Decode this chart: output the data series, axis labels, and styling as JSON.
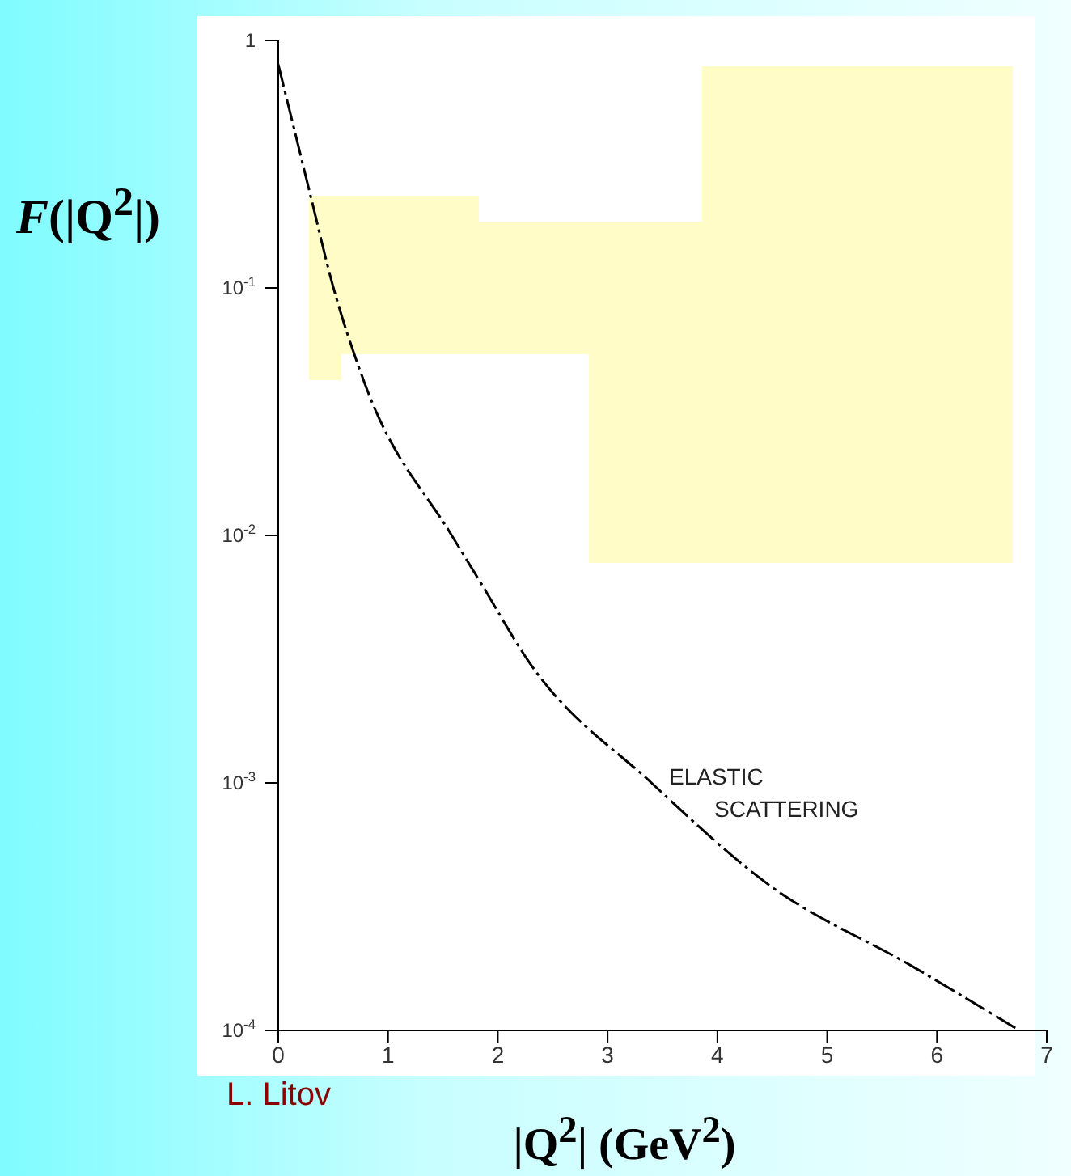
{
  "chart_data": {
    "type": "line",
    "ylabel": "F(|Q$^{2}$|)",
    "xlabel": "|Q$^{2}$| (GeV$^{2}$)",
    "x": [
      0,
      0.29,
      0.49,
      0.78,
      1.58,
      1.83,
      2.28,
      3.4,
      4.46,
      5.79,
      6.75
    ],
    "series": [
      {
        "color": "#000000",
        "line_style": "dashed",
        "values": [
          0.8,
          0.24,
          0.105,
          0.042,
          0.01,
          0.0066,
          0.0031,
          0.001,
          0.00039,
          0.00018,
          0.0001
        ]
      }
    ],
    "xlim": [
      0,
      7
    ],
    "xticks": [
      0,
      1,
      2,
      3,
      4,
      5,
      6,
      7
    ],
    "ylim": [
      0.0001,
      1
    ],
    "yticks": [
      {
        "value": 0.0001,
        "label": "10$^{-4}$"
      },
      {
        "value": 0.001,
        "label": "10$^{-3}$"
      },
      {
        "value": 0.01,
        "label": "10$^{-2}$"
      },
      {
        "value": 0.1,
        "label": "10$^{-1}$"
      },
      1
    ],
    "log": "y",
    "grid": false,
    "legend": false,
    "marker": "none",
    "annotations": [
      {
        "text": "ELASTIC SCATTERING",
        "x": 3.5,
        "y": 0.001
      },
      "L. Litov"
    ]
  }
}
